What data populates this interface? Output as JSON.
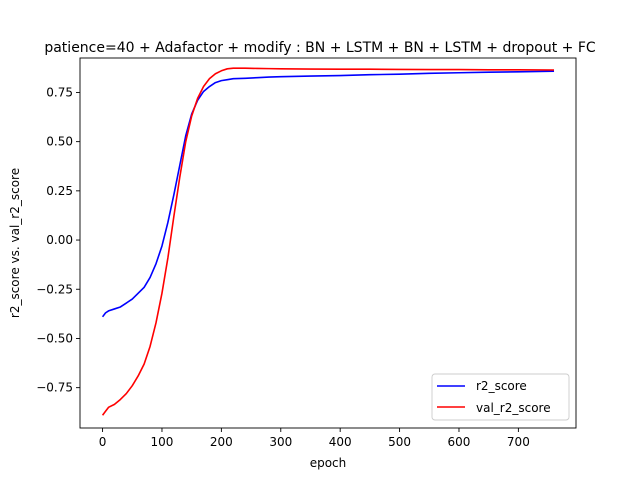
{
  "chart_data": {
    "type": "line",
    "title": "patience=40 + Adafactor + modify : BN + LSTM + BN + LSTM + dropout + FC",
    "xlabel": "epoch",
    "ylabel": "r2_score vs. val_r2_score",
    "xlim": [
      -38,
      797
    ],
    "ylim": [
      -0.955,
      0.925
    ],
    "xticks": [
      0,
      100,
      200,
      300,
      400,
      500,
      600,
      700
    ],
    "xtick_labels": [
      "0",
      "100",
      "200",
      "300",
      "400",
      "500",
      "600",
      "700"
    ],
    "yticks": [
      -0.75,
      -0.5,
      -0.25,
      0.0,
      0.25,
      0.5,
      0.75
    ],
    "ytick_labels": [
      "−0.75",
      "−0.50",
      "−0.25",
      "0.00",
      "0.25",
      "0.50",
      "0.75"
    ],
    "grid": false,
    "legend_position": "lower-right",
    "series": [
      {
        "name": "r2_score",
        "color": "#0000ff",
        "points": [
          [
            0,
            -0.39
          ],
          [
            5,
            -0.37
          ],
          [
            10,
            -0.36
          ],
          [
            20,
            -0.35
          ],
          [
            30,
            -0.34
          ],
          [
            40,
            -0.32
          ],
          [
            50,
            -0.3
          ],
          [
            60,
            -0.27
          ],
          [
            70,
            -0.24
          ],
          [
            80,
            -0.19
          ],
          [
            90,
            -0.12
          ],
          [
            100,
            -0.03
          ],
          [
            110,
            0.09
          ],
          [
            120,
            0.23
          ],
          [
            130,
            0.38
          ],
          [
            140,
            0.53
          ],
          [
            150,
            0.64
          ],
          [
            160,
            0.71
          ],
          [
            170,
            0.755
          ],
          [
            180,
            0.78
          ],
          [
            190,
            0.8
          ],
          [
            200,
            0.81
          ],
          [
            210,
            0.815
          ],
          [
            220,
            0.82
          ],
          [
            240,
            0.822
          ],
          [
            260,
            0.825
          ],
          [
            280,
            0.828
          ],
          [
            300,
            0.83
          ],
          [
            350,
            0.833
          ],
          [
            400,
            0.836
          ],
          [
            450,
            0.84
          ],
          [
            500,
            0.843
          ],
          [
            550,
            0.847
          ],
          [
            600,
            0.85
          ],
          [
            650,
            0.853
          ],
          [
            700,
            0.855
          ],
          [
            760,
            0.858
          ]
        ]
      },
      {
        "name": "val_r2_score",
        "color": "#ff0000",
        "points": [
          [
            0,
            -0.89
          ],
          [
            5,
            -0.87
          ],
          [
            10,
            -0.85
          ],
          [
            20,
            -0.835
          ],
          [
            30,
            -0.81
          ],
          [
            40,
            -0.78
          ],
          [
            50,
            -0.74
          ],
          [
            60,
            -0.69
          ],
          [
            70,
            -0.63
          ],
          [
            80,
            -0.54
          ],
          [
            90,
            -0.42
          ],
          [
            100,
            -0.27
          ],
          [
            110,
            -0.09
          ],
          [
            120,
            0.12
          ],
          [
            130,
            0.32
          ],
          [
            140,
            0.5
          ],
          [
            150,
            0.63
          ],
          [
            160,
            0.72
          ],
          [
            170,
            0.78
          ],
          [
            180,
            0.82
          ],
          [
            190,
            0.845
          ],
          [
            200,
            0.86
          ],
          [
            210,
            0.87
          ],
          [
            220,
            0.873
          ],
          [
            240,
            0.873
          ],
          [
            260,
            0.872
          ],
          [
            280,
            0.871
          ],
          [
            300,
            0.87
          ],
          [
            350,
            0.869
          ],
          [
            400,
            0.868
          ],
          [
            450,
            0.868
          ],
          [
            500,
            0.867
          ],
          [
            550,
            0.866
          ],
          [
            600,
            0.866
          ],
          [
            650,
            0.865
          ],
          [
            700,
            0.865
          ],
          [
            760,
            0.864
          ]
        ]
      }
    ]
  }
}
